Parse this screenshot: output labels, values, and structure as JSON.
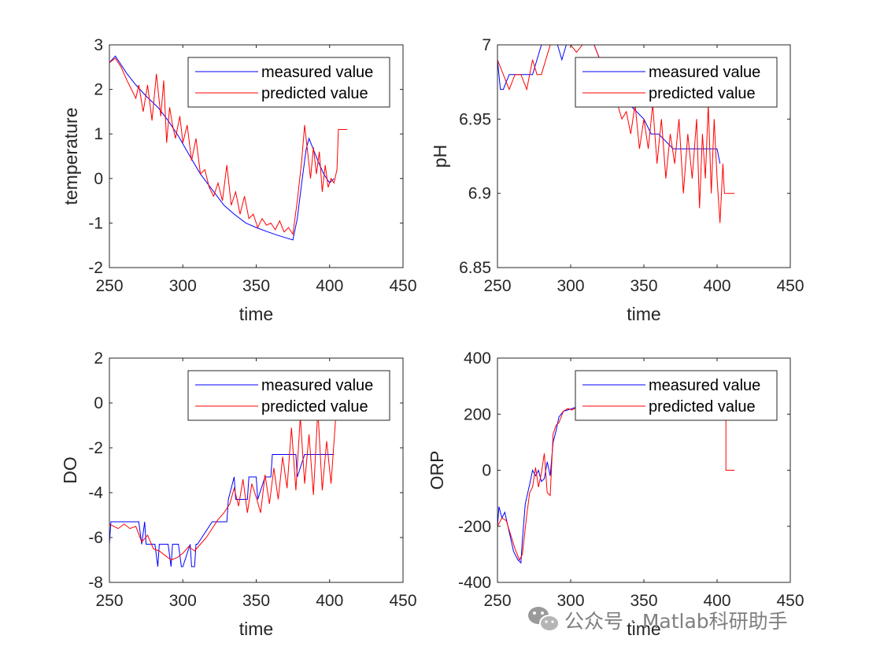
{
  "watermark": {
    "text": "公众号 · Matlab科研助手",
    "icon": "wechat-icon"
  },
  "colors": {
    "measured": "#0000ff",
    "predicted": "#ff0000",
    "axis": "#262626"
  },
  "chart_data": [
    {
      "type": "line",
      "xlabel": "time",
      "ylabel": "temperature",
      "xlim": [
        250,
        450
      ],
      "ylim": [
        -2,
        3
      ],
      "xticks": [
        "250",
        "300",
        "350",
        "400",
        "450"
      ],
      "yticks": [
        "-2",
        "-1",
        "0",
        "1",
        "2",
        "3"
      ],
      "legend_position": "top-right",
      "series": [
        {
          "name": "measured value",
          "color": "#0000ff",
          "x": [
            250,
            254,
            257,
            262,
            268,
            275,
            283,
            290,
            297,
            304,
            312,
            320,
            328,
            335,
            343,
            350,
            358,
            365,
            372,
            375,
            378,
            381,
            384,
            386,
            389,
            392,
            396,
            400,
            403
          ],
          "y": [
            2.6,
            2.75,
            2.6,
            2.35,
            2.1,
            1.85,
            1.6,
            1.3,
            0.95,
            0.55,
            0.1,
            -0.25,
            -0.6,
            -0.8,
            -1.0,
            -1.1,
            -1.2,
            -1.28,
            -1.35,
            -1.38,
            -0.9,
            -0.1,
            0.65,
            0.9,
            0.65,
            0.4,
            0.1,
            -0.1,
            0.0
          ]
        },
        {
          "name": "predicted value",
          "color": "#ff0000",
          "x": [
            250,
            254,
            258,
            262,
            265,
            268,
            270,
            273,
            276,
            279,
            282,
            285,
            287,
            289,
            291,
            293,
            295,
            298,
            300,
            303,
            306,
            309,
            312,
            315,
            318,
            321,
            324,
            327,
            330,
            333,
            336,
            339,
            342,
            345,
            348,
            351,
            354,
            357,
            360,
            363,
            366,
            369,
            372,
            375,
            378,
            381,
            383,
            385,
            387,
            389,
            391,
            393,
            395,
            397,
            399,
            401,
            403,
            405,
            406,
            408,
            410,
            412
          ],
          "y": [
            2.6,
            2.7,
            2.5,
            2.2,
            2.0,
            1.8,
            2.1,
            1.5,
            2.1,
            1.3,
            2.35,
            1.4,
            2.2,
            0.8,
            1.6,
            1.2,
            0.9,
            1.4,
            0.8,
            1.2,
            0.4,
            0.9,
            0.1,
            0.2,
            -0.2,
            -0.4,
            -0.1,
            -0.5,
            0.3,
            -0.6,
            -0.3,
            -0.8,
            -0.4,
            -0.9,
            -0.8,
            -1.1,
            -0.9,
            -1.05,
            -1.0,
            -1.15,
            -0.95,
            -1.2,
            -1.1,
            -1.25,
            -0.5,
            0.4,
            1.2,
            0.6,
            0.0,
            0.7,
            0.1,
            0.6,
            -0.3,
            0.3,
            -0.2,
            0.0,
            -0.1,
            0.2,
            1.1,
            1.1,
            1.1,
            1.1
          ]
        }
      ]
    },
    {
      "type": "line",
      "xlabel": "time",
      "ylabel": "pH",
      "xlim": [
        250,
        450
      ],
      "ylim": [
        6.85,
        7.0
      ],
      "xticks": [
        "250",
        "300",
        "350",
        "400",
        "450"
      ],
      "yticks": [
        "6.85",
        "6.9",
        "6.95",
        "7"
      ],
      "legend_position": "top-right",
      "series": [
        {
          "name": "measured value",
          "color": "#0000ff",
          "x": [
            250,
            252,
            254,
            258,
            262,
            266,
            270,
            274,
            277,
            280,
            283,
            286,
            288,
            291,
            294,
            297,
            300,
            303,
            306,
            309,
            312,
            316,
            320,
            325,
            330,
            335,
            340,
            345,
            350,
            355,
            360,
            365,
            370,
            375,
            380,
            385,
            390,
            395,
            400,
            402
          ],
          "y": [
            6.99,
            6.97,
            6.97,
            6.98,
            6.98,
            6.98,
            6.98,
            6.98,
            6.99,
            7.0,
            7.0,
            7.01,
            7.01,
            7.0,
            6.99,
            7.0,
            7.0,
            7.01,
            7.01,
            7.01,
            7.0,
            7.0,
            6.99,
            6.98,
            6.97,
            6.96,
            6.96,
            6.955,
            6.95,
            6.94,
            6.94,
            6.935,
            6.93,
            6.93,
            6.93,
            6.93,
            6.93,
            6.93,
            6.93,
            6.92
          ]
        },
        {
          "name": "predicted value",
          "color": "#ff0000",
          "x": [
            250,
            254,
            258,
            262,
            266,
            270,
            274,
            277,
            280,
            283,
            286,
            289,
            292,
            296,
            300,
            304,
            308,
            312,
            316,
            320,
            324,
            328,
            332,
            335,
            338,
            341,
            344,
            347,
            350,
            353,
            356,
            359,
            362,
            365,
            368,
            371,
            374,
            377,
            380,
            383,
            386,
            388,
            390,
            392,
            394,
            396,
            398,
            400,
            402,
            404,
            405,
            407,
            409,
            412
          ],
          "y": [
            6.99,
            6.98,
            6.97,
            6.98,
            6.98,
            6.97,
            6.99,
            6.98,
            6.98,
            6.99,
            7.0,
            7.0,
            7.005,
            7.005,
            7.0,
            6.995,
            7.0,
            7.0,
            7.0,
            6.99,
            6.98,
            6.97,
            6.96,
            6.95,
            6.955,
            6.94,
            6.96,
            6.93,
            6.95,
            6.93,
            6.96,
            6.92,
            6.95,
            6.91,
            6.94,
            6.92,
            6.95,
            6.9,
            6.94,
            6.91,
            6.95,
            6.89,
            6.94,
            6.91,
            6.96,
            6.9,
            6.95,
            6.91,
            6.88,
            6.92,
            6.9,
            6.9,
            6.9,
            6.9
          ]
        }
      ]
    },
    {
      "type": "line",
      "xlabel": "time",
      "ylabel": "DO",
      "xlim": [
        250,
        450
      ],
      "ylim": [
        -8,
        2
      ],
      "xticks": [
        "250",
        "300",
        "350",
        "400",
        "450"
      ],
      "yticks": [
        "-8",
        "-6",
        "-4",
        "-2",
        "0",
        "2"
      ],
      "legend_position": "top-right",
      "series": [
        {
          "name": "measured value",
          "color": "#0000ff",
          "x": [
            250,
            251,
            256,
            270,
            272,
            274,
            275,
            281,
            283,
            284,
            290,
            292,
            293,
            297,
            299,
            300,
            305,
            306,
            308,
            309,
            310,
            320,
            321,
            330,
            331,
            335,
            336,
            337,
            338,
            344,
            345,
            350,
            351,
            356,
            357,
            360,
            361,
            370,
            371,
            377,
            378,
            383,
            384,
            398,
            399,
            403
          ],
          "y": [
            -6.3,
            -5.3,
            -5.3,
            -5.3,
            -6.3,
            -5.3,
            -6.3,
            -6.3,
            -7.3,
            -6.3,
            -6.3,
            -7.3,
            -6.3,
            -6.3,
            -7.3,
            -7.3,
            -6.3,
            -7.3,
            -7.3,
            -6.3,
            -6.3,
            -5.3,
            -5.3,
            -5.3,
            -4.3,
            -3.3,
            -4.3,
            -4.3,
            -4.3,
            -4.3,
            -3.3,
            -3.3,
            -4.3,
            -3.3,
            -3.3,
            -3.3,
            -2.3,
            -2.3,
            -2.3,
            -2.3,
            -3.3,
            -2.3,
            -2.3,
            -2.3,
            -2.3,
            -2.3
          ]
        },
        {
          "name": "predicted value",
          "color": "#ff0000",
          "x": [
            250,
            253,
            256,
            260,
            264,
            268,
            272,
            276,
            280,
            284,
            288,
            292,
            296,
            300,
            304,
            308,
            312,
            316,
            320,
            324,
            328,
            332,
            335,
            338,
            341,
            344,
            347,
            350,
            353,
            356,
            359,
            362,
            365,
            368,
            371,
            374,
            377,
            380,
            383,
            386,
            389,
            392,
            395,
            398,
            401,
            404,
            407
          ],
          "y": [
            -5.4,
            -5.5,
            -5.6,
            -5.4,
            -5.6,
            -5.5,
            -6.2,
            -5.9,
            -6.5,
            -6.6,
            -6.8,
            -7.0,
            -6.9,
            -6.7,
            -6.4,
            -6.6,
            -6.3,
            -6.0,
            -5.6,
            -5.2,
            -4.9,
            -4.5,
            -3.8,
            -4.6,
            -3.4,
            -4.9,
            -3.6,
            -4.2,
            -4.9,
            -3.2,
            -4.5,
            -2.9,
            -4.3,
            -2.4,
            -3.8,
            -1.1,
            -3.9,
            -0.6,
            -3.6,
            -1.4,
            -4.1,
            -0.3,
            -3.9,
            -1.7,
            -3.6,
            -0.8,
            0.5
          ]
        }
      ]
    },
    {
      "type": "line",
      "xlabel": "time",
      "ylabel": "ORP",
      "xlim": [
        250,
        450
      ],
      "ylim": [
        -400,
        400
      ],
      "xticks": [
        "250",
        "300",
        "350",
        "400",
        "450"
      ],
      "yticks": [
        "-400",
        "-200",
        "0",
        "200",
        "400"
      ],
      "legend_position": "top-right",
      "series": [
        {
          "name": "measured value",
          "color": "#0000ff",
          "x": [
            250,
            251,
            253,
            255,
            258,
            261,
            264,
            266,
            267,
            269,
            272,
            274,
            276,
            278,
            280,
            282,
            284,
            286,
            288,
            290,
            292,
            295,
            298,
            301,
            304,
            307,
            310
          ],
          "y": [
            -200,
            -130,
            -170,
            -150,
            -220,
            -290,
            -320,
            -330,
            -250,
            -120,
            -50,
            0,
            -20,
            0,
            -40,
            -30,
            30,
            -20,
            100,
            140,
            190,
            210,
            215,
            220,
            225,
            225,
            230
          ]
        },
        {
          "name": "predicted value",
          "color": "#ff0000",
          "x": [
            250,
            253,
            256,
            259,
            262,
            265,
            267,
            270,
            272,
            274,
            276,
            278,
            280,
            282,
            284,
            286,
            288,
            290,
            292,
            295,
            298,
            301,
            304,
            307,
            310,
            406,
            406,
            408,
            410,
            412
          ],
          "y": [
            -200,
            -170,
            -180,
            -230,
            -280,
            -320,
            -300,
            -160,
            -80,
            -60,
            10,
            -60,
            -10,
            60,
            -80,
            -90,
            130,
            160,
            170,
            210,
            220,
            215,
            225,
            220,
            230,
            200,
            0,
            0,
            0,
            0
          ]
        }
      ]
    }
  ]
}
